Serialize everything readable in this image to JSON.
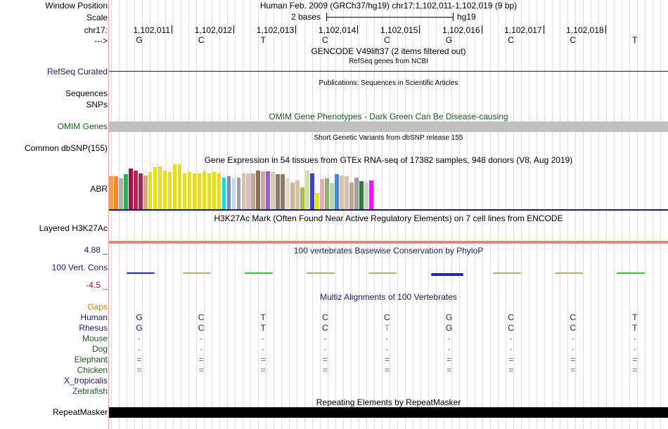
{
  "labels": {
    "window_position": "Window Position",
    "scale": "Scale",
    "chrom": "chr17:",
    "strand": "--->",
    "refseq": "RefSeq Curated",
    "sequences": "Sequences",
    "snps": "SNPs",
    "omim": "OMIM Genes",
    "dbsnp": "Common dbSNP(155)",
    "abr": "ABR",
    "h3k27ac": "Layered H3K27Ac",
    "cons_max": "4.88 _",
    "cons": "100 Vert. Cons",
    "cons_min": "-4.5 _",
    "gaps": "Gaps",
    "repeatmasker": "RepeatMasker"
  },
  "header": {
    "position_text": "Human Feb. 2009 (GRCh37/hg19)   chr17:1,102,011-1,102,019 (9 bp)",
    "scale_text": "2 bases",
    "assembly": "hg19"
  },
  "ruler_ticks": [
    "1,102,011",
    "1,102,012",
    "1,102,013",
    "1,102,014",
    "1,102,015",
    "1,102,016",
    "1,102,017",
    "1,102,018"
  ],
  "bases": [
    "G",
    "C",
    "T",
    "C",
    "C",
    "G",
    "C",
    "C",
    "T"
  ],
  "tracks": {
    "gencode": "GENCODE V49lift37 (2 items filtered out)",
    "refseq_desc": "RefSeq genes from NCBI",
    "publications": "Publications: Sequences in Scientific Articles",
    "omim": "OMIM Gene Phenotypes - Dark Green Can Be Disease-causing",
    "dbsnp": "Short Genetic Variants from dbSNP release 155",
    "gtex": "Gene Expression in 54 tissues from GTEx RNA-seq of 17382 samples, 948 donors (V8, Aug 2019)",
    "h3k27ac": "H3K27Ac Mark (Often Found Near Active Regulatory Elements) on 7 cell lines from ENCODE",
    "phylop": "100 vertebrates Basewise Conservation by PhyloP",
    "multiz": "Multiz Alignments of 100 Vertebrates",
    "repeatmasker": "Repeating Elements by RepeatMasker"
  },
  "gtex_colors": [
    "#f4a04a",
    "#f48a2a",
    "#b0b0b0",
    "#33aa55",
    "#8b1a4a",
    "#c02050",
    "#a02858",
    "#d2a878",
    "#e8e010",
    "#e8e010",
    "#e8e010",
    "#e8e010",
    "#e8e010",
    "#e8e010",
    "#e8e010",
    "#e8e010",
    "#e8e010",
    "#e8e010",
    "#e8e010",
    "#e8e010",
    "#e8e010",
    "#e8e010",
    "#e8e010",
    "#20d8d8",
    "#7090c8",
    "#c8d8e8",
    "#a0a0a0",
    "#d8c0b8",
    "#d8c0b8",
    "#c0a890",
    "#8b6f5a",
    "#c8a8a0",
    "#9860c0",
    "#d8c8b8",
    "#8b7b6b",
    "#8b7b6b",
    "#e8d8c8",
    "#c8b898",
    "#d8c0b0",
    "#a8c040",
    "#d0e0a8",
    "#4040c8",
    "#e8e010",
    "#f0a8b8",
    "#90b070",
    "#b8d8a0",
    "#4488dd",
    "#d8c0b0",
    "#d8c0b0",
    "#c0a890",
    "#a0a0a0",
    "#2e7d32",
    "#d0d0d0",
    "#ff10ff"
  ],
  "gtex_values": [
    0.33,
    0.33,
    0.31,
    0.35,
    0.41,
    0.39,
    0.36,
    0.34,
    0.37,
    0.42,
    0.43,
    0.39,
    0.37,
    0.45,
    0.45,
    0.36,
    0.37,
    0.36,
    0.36,
    0.38,
    0.36,
    0.37,
    0.36,
    0.32,
    0.33,
    0.31,
    0.32,
    0.36,
    0.36,
    0.36,
    0.39,
    0.38,
    0.38,
    0.37,
    0.35,
    0.35,
    0.31,
    0.27,
    0.29,
    0.22,
    0.39,
    0.36,
    0.16,
    0.3,
    0.31,
    0.26,
    0.35,
    0.34,
    0.33,
    0.27,
    0.32,
    0.28,
    0.27,
    0.29
  ],
  "conservation_colors": [
    "#2222cc",
    "#a8b860",
    "#22cc22",
    "#a8b860",
    "#a8b860",
    "#2222cc",
    "#a8b860",
    "#a8b860",
    "#22cc22"
  ],
  "species": [
    {
      "name": "Human",
      "color": "#1a1a6e",
      "bases": [
        "G",
        "C",
        "T",
        "C",
        "C",
        "G",
        "C",
        "C",
        "T"
      ]
    },
    {
      "name": "Rhesus",
      "color": "#1a1a6e",
      "bases": [
        "G",
        "C",
        "T",
        "C",
        "T",
        "G",
        "C",
        "C",
        "T"
      ]
    },
    {
      "name": "Mouse",
      "color": "#1a5e1a",
      "bases": [
        "-",
        "-",
        "-",
        "-",
        "-",
        "-",
        "-",
        "-",
        "-"
      ]
    },
    {
      "name": "Dog",
      "color": "#1a5e1a",
      "bases": [
        "-",
        "-",
        "-",
        "-",
        "-",
        "-",
        "-",
        "-",
        "-"
      ]
    },
    {
      "name": "Elephant",
      "color": "#1a5e1a",
      "bases": [
        "=",
        "=",
        "=",
        "=",
        "=",
        "=",
        "=",
        "=",
        "="
      ]
    },
    {
      "name": "Chicken",
      "color": "#1a5e1a",
      "bases": [
        "=",
        "=",
        "=",
        "=",
        "=",
        "=",
        "=",
        "=",
        "="
      ]
    },
    {
      "name": "X_tropicalis",
      "color": "#1a1a6e",
      "bases": [
        "",
        "",
        "",
        "",
        "",
        "",
        "",
        "",
        ""
      ]
    },
    {
      "name": "Zebrafish",
      "color": "#1a5e1a",
      "bases": [
        "",
        "",
        "",
        "",
        "",
        "",
        "",
        "",
        ""
      ]
    }
  ],
  "colors": {
    "navy": "#1a1a6e",
    "green": "#1a5e1a",
    "gaps": "#e08a00",
    "omim_bar": "#c0c0c0",
    "cons_max": "#1a1a6e",
    "cons_min": "#8b1a1a",
    "h3k27ac": "#f08080"
  }
}
